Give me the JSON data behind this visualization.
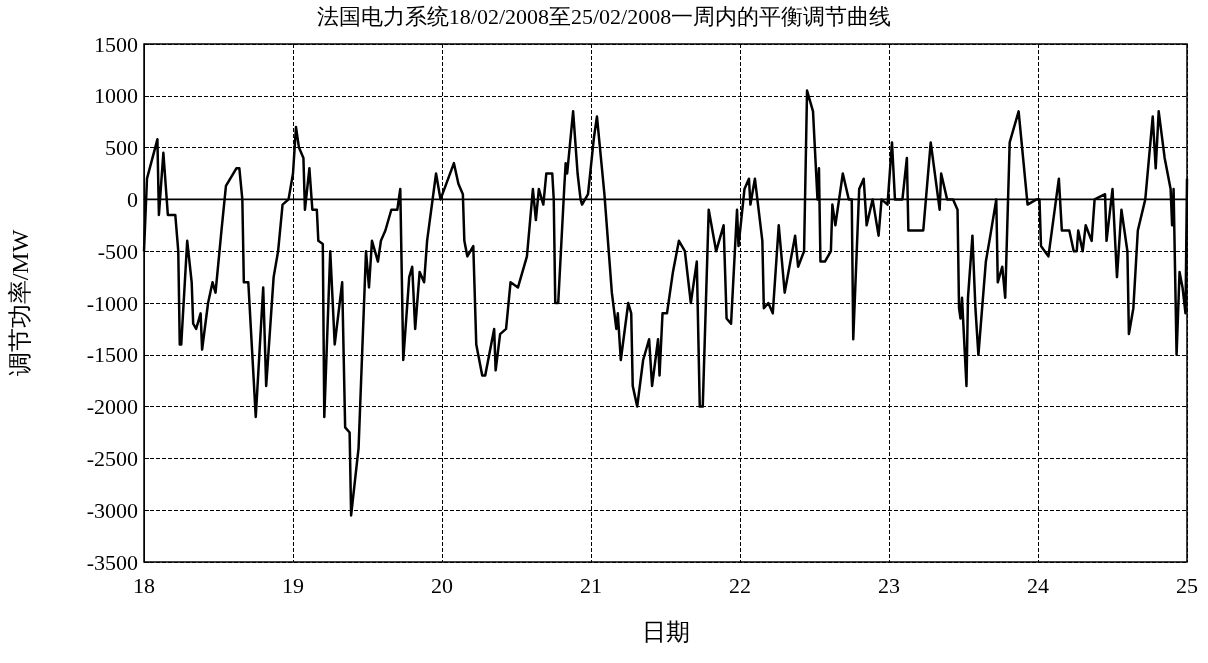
{
  "chart_data": {
    "type": "line",
    "title": "法国电力系统18/02/2008至25/02/2008一周内的平衡调节曲线",
    "xlabel": "日期",
    "ylabel": "调节功率/MW",
    "xlim": [
      18,
      25
    ],
    "xticks": [
      18,
      19,
      20,
      21,
      22,
      23,
      24,
      25
    ],
    "ylim": [
      -3500,
      1500
    ],
    "yticks": [
      -3500,
      -3000,
      -2500,
      -2000,
      -1500,
      -1000,
      -500,
      0,
      500,
      1000,
      1500
    ],
    "grid": true,
    "line_style": "solid",
    "marker": "none",
    "ref_lines": [
      {
        "axis": "y",
        "value": 0,
        "line_style": "solid",
        "color": "#000000"
      }
    ],
    "series": [
      {
        "color": "#000000",
        "x": [
          18.0,
          18.02,
          18.09,
          18.1,
          18.13,
          18.16,
          18.21,
          18.23,
          18.24,
          18.25,
          18.29,
          18.32,
          18.33,
          18.35,
          18.38,
          18.39,
          18.43,
          18.46,
          18.48,
          18.52,
          18.55,
          18.62,
          18.64,
          18.66,
          18.67,
          18.7,
          18.75,
          18.8,
          18.82,
          18.87,
          18.9,
          18.93,
          18.97,
          19.0,
          19.02,
          19.04,
          19.07,
          19.08,
          19.11,
          19.13,
          19.16,
          19.17,
          19.2,
          19.21,
          19.25,
          19.28,
          19.33,
          19.35,
          19.38,
          19.39,
          19.44,
          19.49,
          19.51,
          19.53,
          19.57,
          19.59,
          19.62,
          19.66,
          19.7,
          19.72,
          19.74,
          19.78,
          19.8,
          19.82,
          19.85,
          19.88,
          19.9,
          19.96,
          19.99,
          20.08,
          20.11,
          20.14,
          20.15,
          20.17,
          20.21,
          20.23,
          20.27,
          20.29,
          20.35,
          20.36,
          20.39,
          20.43,
          20.46,
          20.51,
          20.57,
          20.61,
          20.63,
          20.65,
          20.68,
          20.7,
          20.74,
          20.75,
          20.76,
          20.78,
          20.82,
          20.83,
          20.84,
          20.88,
          20.91,
          20.93,
          20.94,
          20.98,
          21.02,
          21.04,
          21.07,
          21.09,
          21.14,
          21.17,
          21.18,
          21.2,
          21.25,
          21.27,
          21.28,
          21.31,
          21.35,
          21.39,
          21.41,
          21.45,
          21.46,
          21.48,
          21.51,
          21.55,
          21.59,
          21.63,
          21.67,
          21.71,
          21.73,
          21.75,
          21.79,
          21.84,
          21.89,
          21.91,
          21.94,
          21.98,
          21.99,
          22.03,
          22.06,
          22.07,
          22.1,
          22.15,
          22.16,
          22.19,
          22.22,
          22.26,
          22.3,
          22.37,
          22.39,
          22.43,
          22.45,
          22.49,
          22.52,
          22.53,
          22.54,
          22.57,
          22.61,
          22.62,
          22.64,
          22.69,
          22.73,
          22.75,
          22.76,
          22.8,
          22.83,
          22.85,
          22.89,
          22.93,
          22.95,
          22.99,
          23.02,
          23.04,
          23.09,
          23.12,
          23.13,
          23.21,
          23.23,
          23.28,
          23.34,
          23.35,
          23.39,
          23.43,
          23.46,
          23.47,
          23.48,
          23.49,
          23.52,
          23.53,
          23.56,
          23.58,
          23.6,
          23.65,
          23.68,
          23.72,
          23.73,
          23.76,
          23.78,
          23.81,
          23.87,
          23.93,
          23.99,
          24.01,
          24.02,
          24.07,
          24.14,
          24.16,
          24.21,
          24.24,
          24.26,
          24.27,
          24.3,
          24.32,
          24.36,
          24.38,
          24.45,
          24.46,
          24.5,
          24.53,
          24.56,
          24.6,
          24.61,
          24.64,
          24.67,
          24.72,
          24.77,
          24.79,
          24.81,
          24.85,
          24.89,
          24.9,
          24.91,
          24.93,
          24.95,
          24.97,
          24.99,
          25.0
        ],
        "values": [
          -500,
          200,
          580,
          -150,
          450,
          -150,
          -150,
          -500,
          -1400,
          -1400,
          -400,
          -800,
          -1200,
          -1250,
          -1100,
          -1450,
          -1000,
          -800,
          -900,
          -300,
          130,
          300,
          300,
          0,
          -800,
          -800,
          -2100,
          -850,
          -1800,
          -750,
          -500,
          -50,
          0,
          250,
          700,
          500,
          400,
          -100,
          300,
          -100,
          -100,
          -400,
          -430,
          -2100,
          -500,
          -1400,
          -800,
          -2200,
          -2250,
          -3050,
          -2400,
          -500,
          -850,
          -400,
          -600,
          -400,
          -300,
          -100,
          -100,
          100,
          -1550,
          -750,
          -650,
          -1250,
          -700,
          -800,
          -400,
          250,
          0,
          350,
          150,
          50,
          -400,
          -550,
          -450,
          -1400,
          -1700,
          -1700,
          -1250,
          -1650,
          -1300,
          -1250,
          -800,
          -850,
          -550,
          100,
          -200,
          100,
          -50,
          250,
          250,
          0,
          -1000,
          -1000,
          100,
          350,
          250,
          850,
          250,
          0,
          -50,
          50,
          600,
          800,
          350,
          50,
          -900,
          -1250,
          -1100,
          -1550,
          -1000,
          -1100,
          -1800,
          -2000,
          -1550,
          -1350,
          -1800,
          -1350,
          -1700,
          -1100,
          -1100,
          -700,
          -400,
          -500,
          -1000,
          -600,
          -2000,
          -2000,
          -100,
          -500,
          -250,
          -1150,
          -1200,
          -100,
          -450,
          100,
          200,
          -50,
          200,
          -400,
          -1050,
          -1000,
          -1100,
          -250,
          -900,
          -350,
          -650,
          -500,
          1050,
          850,
          0,
          300,
          -600,
          -600,
          -500,
          -50,
          -250,
          250,
          0,
          0,
          -1350,
          100,
          200,
          -250,
          0,
          -350,
          0,
          -50,
          550,
          0,
          0,
          400,
          -300,
          -300,
          -300,
          550,
          -100,
          250,
          0,
          0,
          -100,
          -1050,
          -1150,
          -950,
          -1800,
          -950,
          -350,
          -1050,
          -1500,
          -600,
          -350,
          0,
          -800,
          -650,
          -950,
          550,
          850,
          -50,
          0,
          0,
          -450,
          -550,
          200,
          -300,
          -300,
          -500,
          -500,
          -300,
          -500,
          -250,
          -400,
          0,
          50,
          -400,
          100,
          -750,
          -100,
          -500,
          -1300,
          -1050,
          -300,
          0,
          800,
          300,
          850,
          400,
          100,
          -250,
          100,
          -1500,
          -700,
          -850,
          -1100,
          200
        ]
      }
    ]
  }
}
